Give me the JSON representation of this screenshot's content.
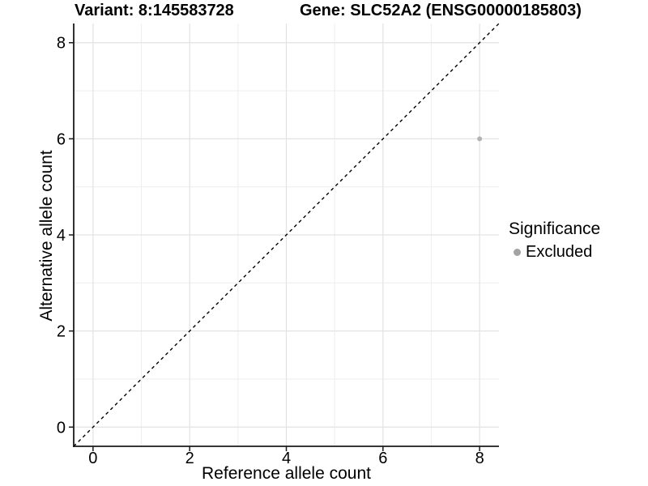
{
  "header": {
    "variant_title": "Variant: 8:145583728",
    "gene_title": "Gene: SLC52A2 (ENSG00000185803)"
  },
  "chart_data": {
    "type": "scatter",
    "xlabel": "Reference allele count",
    "ylabel": "Alternative allele count",
    "xlim": [
      -0.4,
      8.4
    ],
    "ylim": [
      -0.4,
      8.4
    ],
    "x_ticks": [
      0,
      2,
      4,
      6,
      8
    ],
    "y_ticks": [
      0,
      2,
      4,
      6,
      8
    ],
    "x_minor_ticks": [
      1,
      3,
      5,
      7
    ],
    "y_minor_ticks": [
      1,
      3,
      5,
      7
    ],
    "grid": "on",
    "identity_line": {
      "style": "dashed",
      "color": "#000000",
      "from": [
        -0.4,
        -0.4
      ],
      "to": [
        8.4,
        8.4
      ]
    },
    "series": [
      {
        "name": "Excluded",
        "color": "#b2b2b2",
        "points": [
          {
            "x": 8,
            "y": 6
          }
        ]
      }
    ],
    "legend": {
      "title": "Significance",
      "position": "right",
      "items": [
        {
          "label": "Excluded",
          "color": "#a3a3a3"
        }
      ]
    },
    "colors": {
      "grid_major": "#e3e3e3",
      "grid_minor": "#efefef",
      "axis": "#1a1a1a"
    }
  }
}
